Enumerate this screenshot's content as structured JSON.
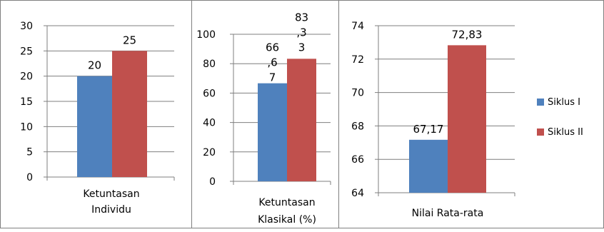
{
  "chart_data": [
    {
      "type": "bar",
      "categories": [
        "Ketuntasan Individu"
      ],
      "category_label_lines": [
        "Ketuntasan",
        "Individu"
      ],
      "series": [
        {
          "name": "Siklus I",
          "values": [
            20
          ],
          "labels": [
            "20"
          ]
        },
        {
          "name": "Siklus II",
          "values": [
            25
          ],
          "labels": [
            "25"
          ]
        }
      ],
      "ylim": [
        0,
        30
      ],
      "yticks": [
        "0",
        "5",
        "10",
        "15",
        "20",
        "25",
        "30"
      ],
      "grid": true
    },
    {
      "type": "bar",
      "categories": [
        "Ketuntasan Klasikal (%)"
      ],
      "category_label_lines": [
        "Ketuntasan",
        "Klasikal (%)"
      ],
      "series": [
        {
          "name": "Siklus I",
          "values": [
            66.67
          ],
          "labels": [
            "66",
            ",6",
            "7"
          ]
        },
        {
          "name": "Siklus II",
          "values": [
            83.33
          ],
          "labels": [
            "83",
            ",3",
            "3"
          ]
        }
      ],
      "ylim": [
        0,
        100
      ],
      "yticks": [
        "0",
        "20",
        "40",
        "60",
        "80",
        "100"
      ],
      "grid": true
    },
    {
      "type": "bar",
      "categories": [
        "Nilai Rata-rata"
      ],
      "category_label_lines": [
        "Nilai Rata-rata"
      ],
      "series": [
        {
          "name": "Siklus I",
          "values": [
            67.17
          ],
          "labels": [
            "67,17"
          ]
        },
        {
          "name": "Siklus II",
          "values": [
            72.83
          ],
          "labels": [
            "72,83"
          ]
        }
      ],
      "ylim": [
        64,
        74
      ],
      "yticks": [
        "64",
        "66",
        "68",
        "70",
        "72",
        "74"
      ],
      "grid": true
    }
  ],
  "legend": {
    "placement": "right",
    "items": [
      {
        "label": "Siklus I",
        "color": "#4f81bd"
      },
      {
        "label": "Siklus II",
        "color": "#c0504d"
      }
    ]
  },
  "colors": {
    "series1": "#4f81bd",
    "series2": "#c0504d",
    "gridline": "#7f7f7f",
    "frame": "#808080"
  }
}
